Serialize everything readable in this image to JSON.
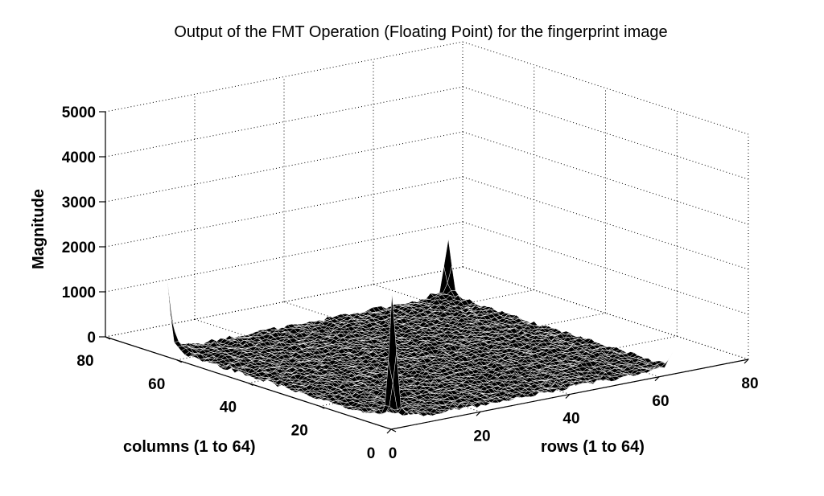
{
  "chart_data": {
    "type": "surface",
    "title": "Output of the FMT Operation (Floating Point) for the fingerprint image",
    "xlabel": "rows (1 to 64)",
    "ylabel": "columns (1 to 64)",
    "zlabel": "Magnitude",
    "xlim": [
      0,
      80
    ],
    "ylim": [
      0,
      80
    ],
    "zlim": [
      0,
      5000
    ],
    "x_ticks": [
      "0",
      "20",
      "40",
      "60",
      "80"
    ],
    "y_ticks": [
      "0",
      "20",
      "40",
      "60",
      "80"
    ],
    "z_ticks": [
      "0",
      "1000",
      "2000",
      "3000",
      "4000",
      "5000"
    ],
    "grid": true,
    "grid_size": [
      64,
      64
    ],
    "colormap": "black-mesh-white-edges",
    "peaks": [
      {
        "row": 1,
        "column": 1,
        "magnitude": 2600
      },
      {
        "row": 1,
        "column": 64,
        "magnitude": 1400
      },
      {
        "row": 64,
        "column": 1,
        "magnitude": 350
      },
      {
        "row": 64,
        "column": 64,
        "magnitude": 1100
      }
    ],
    "background_magnitude_range": [
      0,
      250
    ]
  }
}
